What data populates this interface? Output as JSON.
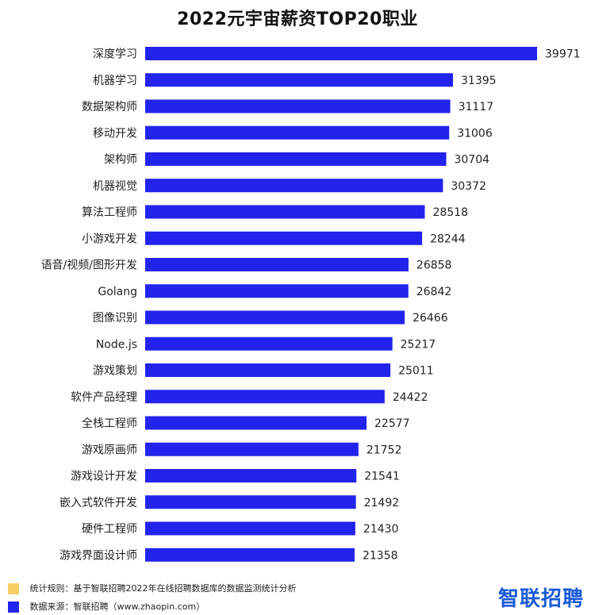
{
  "chart_data": {
    "type": "bar",
    "orientation": "horizontal",
    "title": "2022元宇宙薪资TOP20职业",
    "categories": [
      "深度学习",
      "机器学习",
      "数据架构师",
      "移动开发",
      "架构师",
      "机器视觉",
      "算法工程师",
      "小游戏开发",
      "语音/视频/图形开发",
      "Golang",
      "图像识别",
      "Node.js",
      "游戏策划",
      "软件产品经理",
      "全栈工程师",
      "游戏原画师",
      "游戏设计开发",
      "嵌入式软件开发",
      "硬件工程师",
      "游戏界面设计师"
    ],
    "values": [
      39971,
      31395,
      31117,
      31006,
      30704,
      30372,
      28518,
      28244,
      26858,
      26842,
      26466,
      25217,
      25011,
      24422,
      22577,
      21752,
      21541,
      21492,
      21430,
      21358
    ],
    "bar_color": "#2323ee",
    "grid": false,
    "legend": "none"
  },
  "footer": {
    "rule_text": "统计规则：基于智联招聘2022年在线招聘数据库的数据监测统计分析",
    "rule_color": "#f5cf63",
    "source_text": "数据来源：智联招聘（www.zhaopin.com）",
    "source_color": "#2323ee",
    "logo_text": "智联招聘"
  }
}
